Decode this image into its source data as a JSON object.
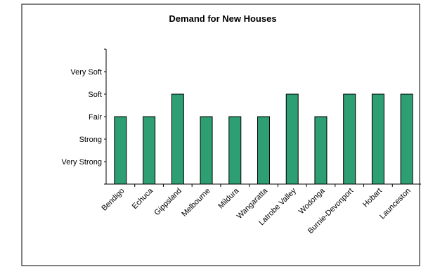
{
  "chart_data": {
    "type": "bar",
    "title": "Demand for New Houses",
    "xlabel": "",
    "ylabel": "",
    "y_scale_labels": [
      "Very Strong",
      "Strong",
      "Fair",
      "Soft",
      "Very Soft"
    ],
    "ylim": [
      0,
      6
    ],
    "categories": [
      "Bendigo",
      "Echuca",
      "Gippsland",
      "Melbourne",
      "Mildura",
      "Wangaratta",
      "Latrobe Valley",
      "Wodonga",
      "Burnie-Devonport",
      "Hobart",
      "Launceston"
    ],
    "values": [
      3,
      3,
      4,
      3,
      3,
      3,
      4,
      3,
      4,
      4,
      4
    ],
    "value_labels": [
      "Fair",
      "Fair",
      "Soft",
      "Fair",
      "Fair",
      "Fair",
      "Soft",
      "Fair",
      "Soft",
      "Soft",
      "Soft"
    ],
    "grid": false,
    "legend": "none",
    "bar_color": "#2e9e73",
    "bar_outline": "#000000"
  }
}
